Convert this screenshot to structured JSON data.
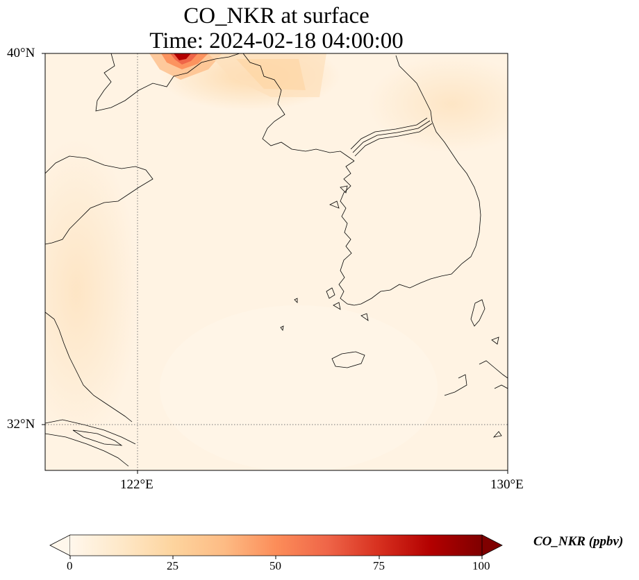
{
  "title": {
    "line1": "CO_NKR at surface",
    "line2": "Time: 2024-02-18 04:00:00"
  },
  "map": {
    "extent": {
      "lon_min": 120,
      "lon_max": 130,
      "lat_min": 31,
      "lat_max": 40
    },
    "lat_ticks": [
      "40°N",
      "32°N"
    ],
    "lon_ticks": [
      "122°E",
      "130°E"
    ],
    "gridlines": {
      "lon": 122,
      "lat": 32,
      "style": "dotted"
    },
    "hotspot": {
      "description_value_ppbv": 90,
      "region": "north-west top edge"
    }
  },
  "colorbar": {
    "label": "CO_NKR (ppbv)",
    "colormap": "OrRd",
    "min": 0,
    "max": 100,
    "ticks": [
      "0",
      "25",
      "50",
      "75",
      "100"
    ],
    "extend": "both",
    "colors": [
      "#fff7ec",
      "#fee8c8",
      "#fdd49e",
      "#fdbb84",
      "#fc8d59",
      "#ef6548",
      "#d7301f",
      "#b30000",
      "#7f0000"
    ]
  }
}
